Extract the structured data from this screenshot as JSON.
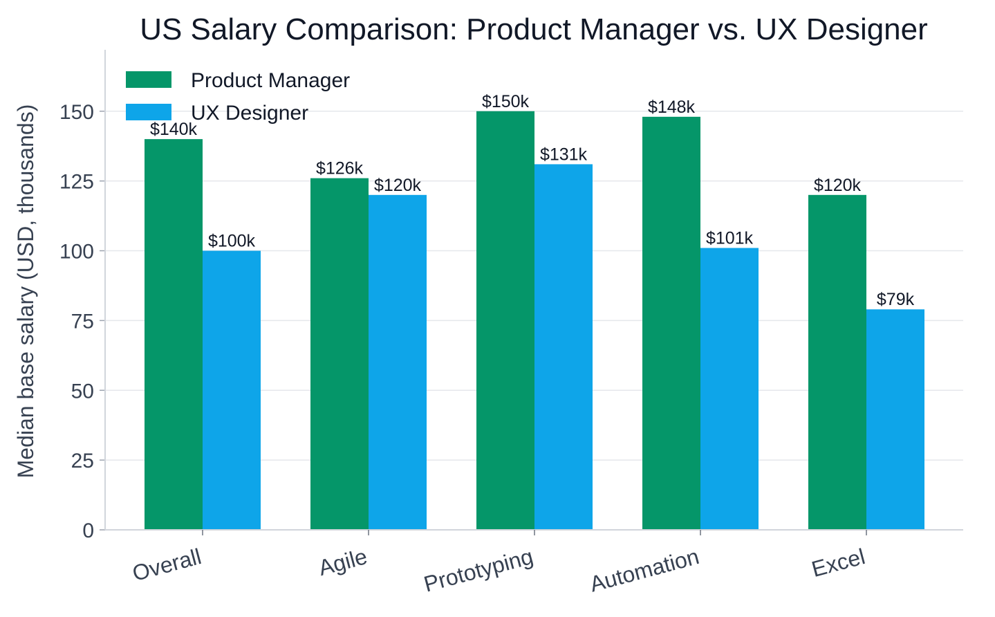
{
  "chart_data": {
    "type": "bar",
    "title": "US Salary Comparison: Product Manager vs. UX Designer",
    "xlabel": "",
    "ylabel": "Median base salary (USD, thousands)",
    "categories": [
      "Overall",
      "Agile",
      "Prototyping",
      "Automation",
      "Excel"
    ],
    "series": [
      {
        "name": "Product Manager",
        "color": "#059669",
        "values": [
          140,
          126,
          150,
          148,
          120
        ],
        "labels": [
          "$140k",
          "$126k",
          "$150k",
          "$148k",
          "$120k"
        ]
      },
      {
        "name": "UX Designer",
        "color": "#0ea5e9",
        "values": [
          100,
          120,
          131,
          101,
          79
        ],
        "labels": [
          "$100k",
          "$120k",
          "$131k",
          "$101k",
          "$79k"
        ]
      }
    ],
    "ylim": [
      0,
      172
    ],
    "yticks": [
      0,
      25,
      50,
      75,
      100,
      125,
      150
    ],
    "grid": true,
    "legend_position": "top-left"
  }
}
